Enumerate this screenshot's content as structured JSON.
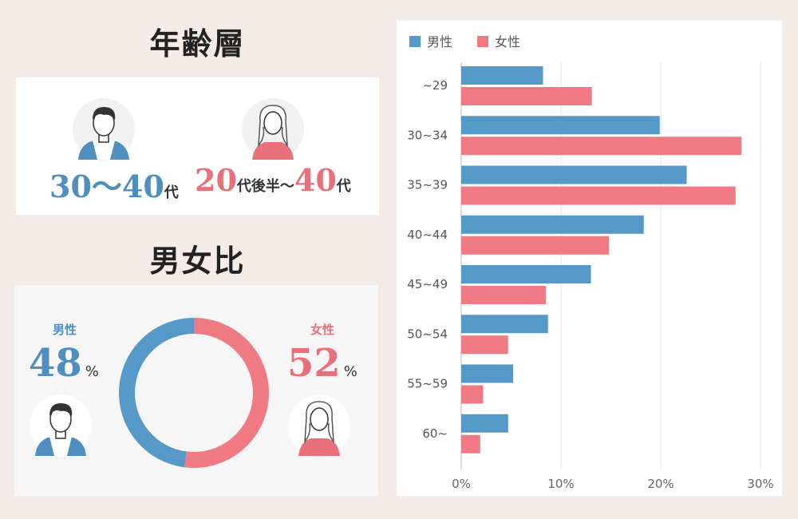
{
  "age_section": {
    "title": "年齢層",
    "male": {
      "number_a": "30",
      "tilde": "〜",
      "number_b": "40",
      "suffix": "代"
    },
    "female": {
      "number_a": "20",
      "mid": "代後半〜",
      "number_b": "40",
      "suffix": "代"
    }
  },
  "ratio_section": {
    "title": "男女比",
    "male": {
      "label": "男性",
      "value": "48",
      "unit": "%"
    },
    "female": {
      "label": "女性",
      "value": "52",
      "unit": "%"
    }
  },
  "colors": {
    "male": "#5599c9",
    "female": "#f07a84",
    "male_text": "#4e8fbf",
    "female_text": "#e8707a"
  },
  "icons": {
    "male": "man-avatar-icon",
    "female": "woman-avatar-icon"
  },
  "chart_data": [
    {
      "type": "pie",
      "variant": "donut",
      "slices": [
        {
          "name": "男性",
          "value": 48
        },
        {
          "name": "女性",
          "value": 52
        }
      ]
    },
    {
      "type": "bar",
      "orientation": "horizontal",
      "categories": [
        "~29",
        "30~34",
        "35~39",
        "40~44",
        "45~49",
        "50~54",
        "55~59",
        "60~"
      ],
      "series": [
        {
          "name": "男性",
          "values": [
            8.2,
            19.9,
            22.6,
            18.3,
            13.0,
            8.7,
            5.2,
            4.7
          ]
        },
        {
          "name": "女性",
          "values": [
            13.1,
            28.1,
            27.5,
            14.8,
            8.5,
            4.7,
            2.2,
            1.9
          ]
        }
      ],
      "xlim": [
        0,
        30
      ],
      "xticks": [
        "0%",
        "10%",
        "20%",
        "30%"
      ],
      "grid": true,
      "legend": "top-left"
    }
  ]
}
